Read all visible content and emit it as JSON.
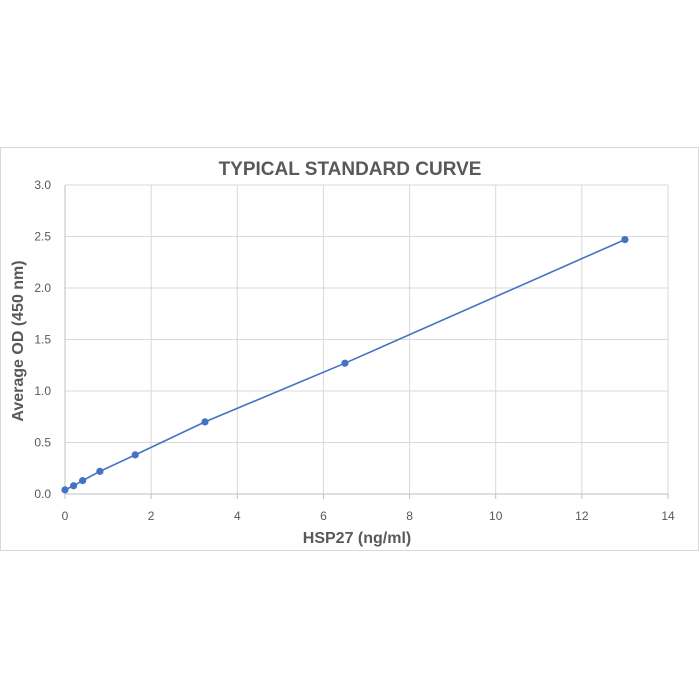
{
  "chart_data": {
    "type": "scatter",
    "title": "TYPICAL STANDARD CURVE",
    "xlabel": "HSP27 (ng/ml)",
    "ylabel": "Average OD (450 nm)",
    "xlim": [
      0,
      14
    ],
    "ylim": [
      0,
      3.0
    ],
    "x_ticks": [
      0,
      2,
      4,
      6,
      8,
      10,
      12,
      14
    ],
    "y_ticks": [
      0,
      0.5,
      1.0,
      1.5,
      2.0,
      2.5,
      3.0
    ],
    "x_tick_labels": [
      "0",
      "2",
      "4",
      "6",
      "8",
      "10",
      "12",
      "14"
    ],
    "y_tick_labels": [
      "0.0",
      "0.5",
      "1.0",
      "1.5",
      "2.0",
      "2.5",
      "3.0"
    ],
    "grid": true,
    "legend": "none",
    "series": [
      {
        "color": "#4472c4",
        "connected": true,
        "x": [
          0,
          0.2,
          0.41,
          0.81,
          1.63,
          3.25,
          6.5,
          13.0
        ],
        "y": [
          0.04,
          0.08,
          0.13,
          0.22,
          0.38,
          0.7,
          1.27,
          2.47
        ]
      }
    ]
  }
}
